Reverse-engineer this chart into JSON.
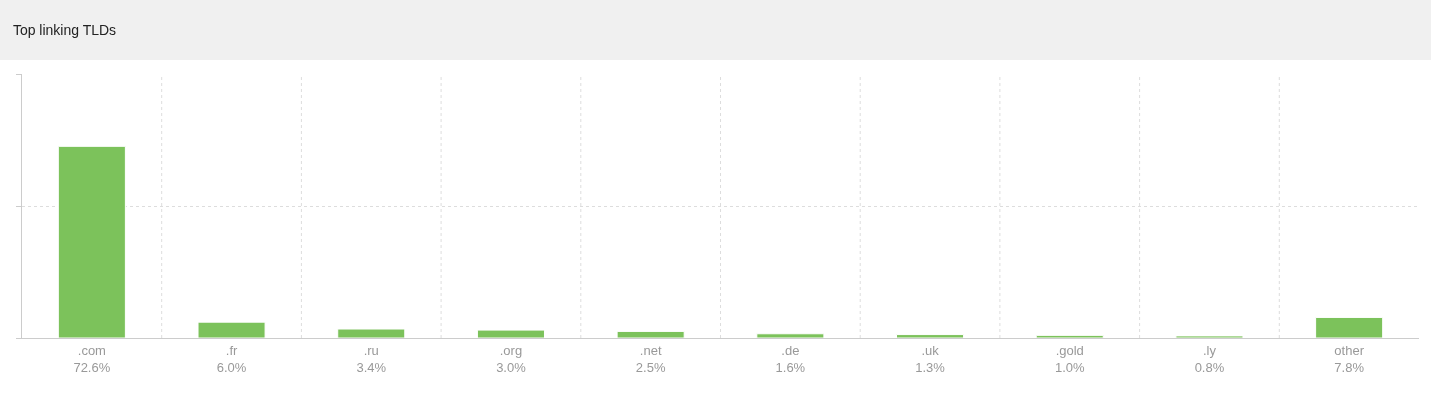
{
  "chart_data": {
    "type": "bar",
    "title": "Top linking TLDs",
    "categories": [
      ".com",
      ".fr",
      ".ru",
      ".org",
      ".net",
      ".de",
      ".uk",
      ".gold",
      ".ly",
      "other"
    ],
    "values": [
      72.6,
      6.0,
      3.4,
      3.0,
      2.5,
      1.6,
      1.3,
      1.0,
      0.8,
      7.8
    ],
    "value_labels": [
      "72.6%",
      "6.0%",
      "3.4%",
      "3.0%",
      "2.5%",
      "1.6%",
      "1.3%",
      "1.0%",
      "0.8%",
      "7.8%"
    ],
    "color": "#7cc25b",
    "ylim": [
      0,
      100
    ],
    "yticks": [
      {
        "value": 0,
        "label": null
      },
      {
        "value": 50,
        "label": null
      },
      {
        "value": 100,
        "label": null
      }
    ],
    "tick_labels": "x",
    "grid": true
  }
}
